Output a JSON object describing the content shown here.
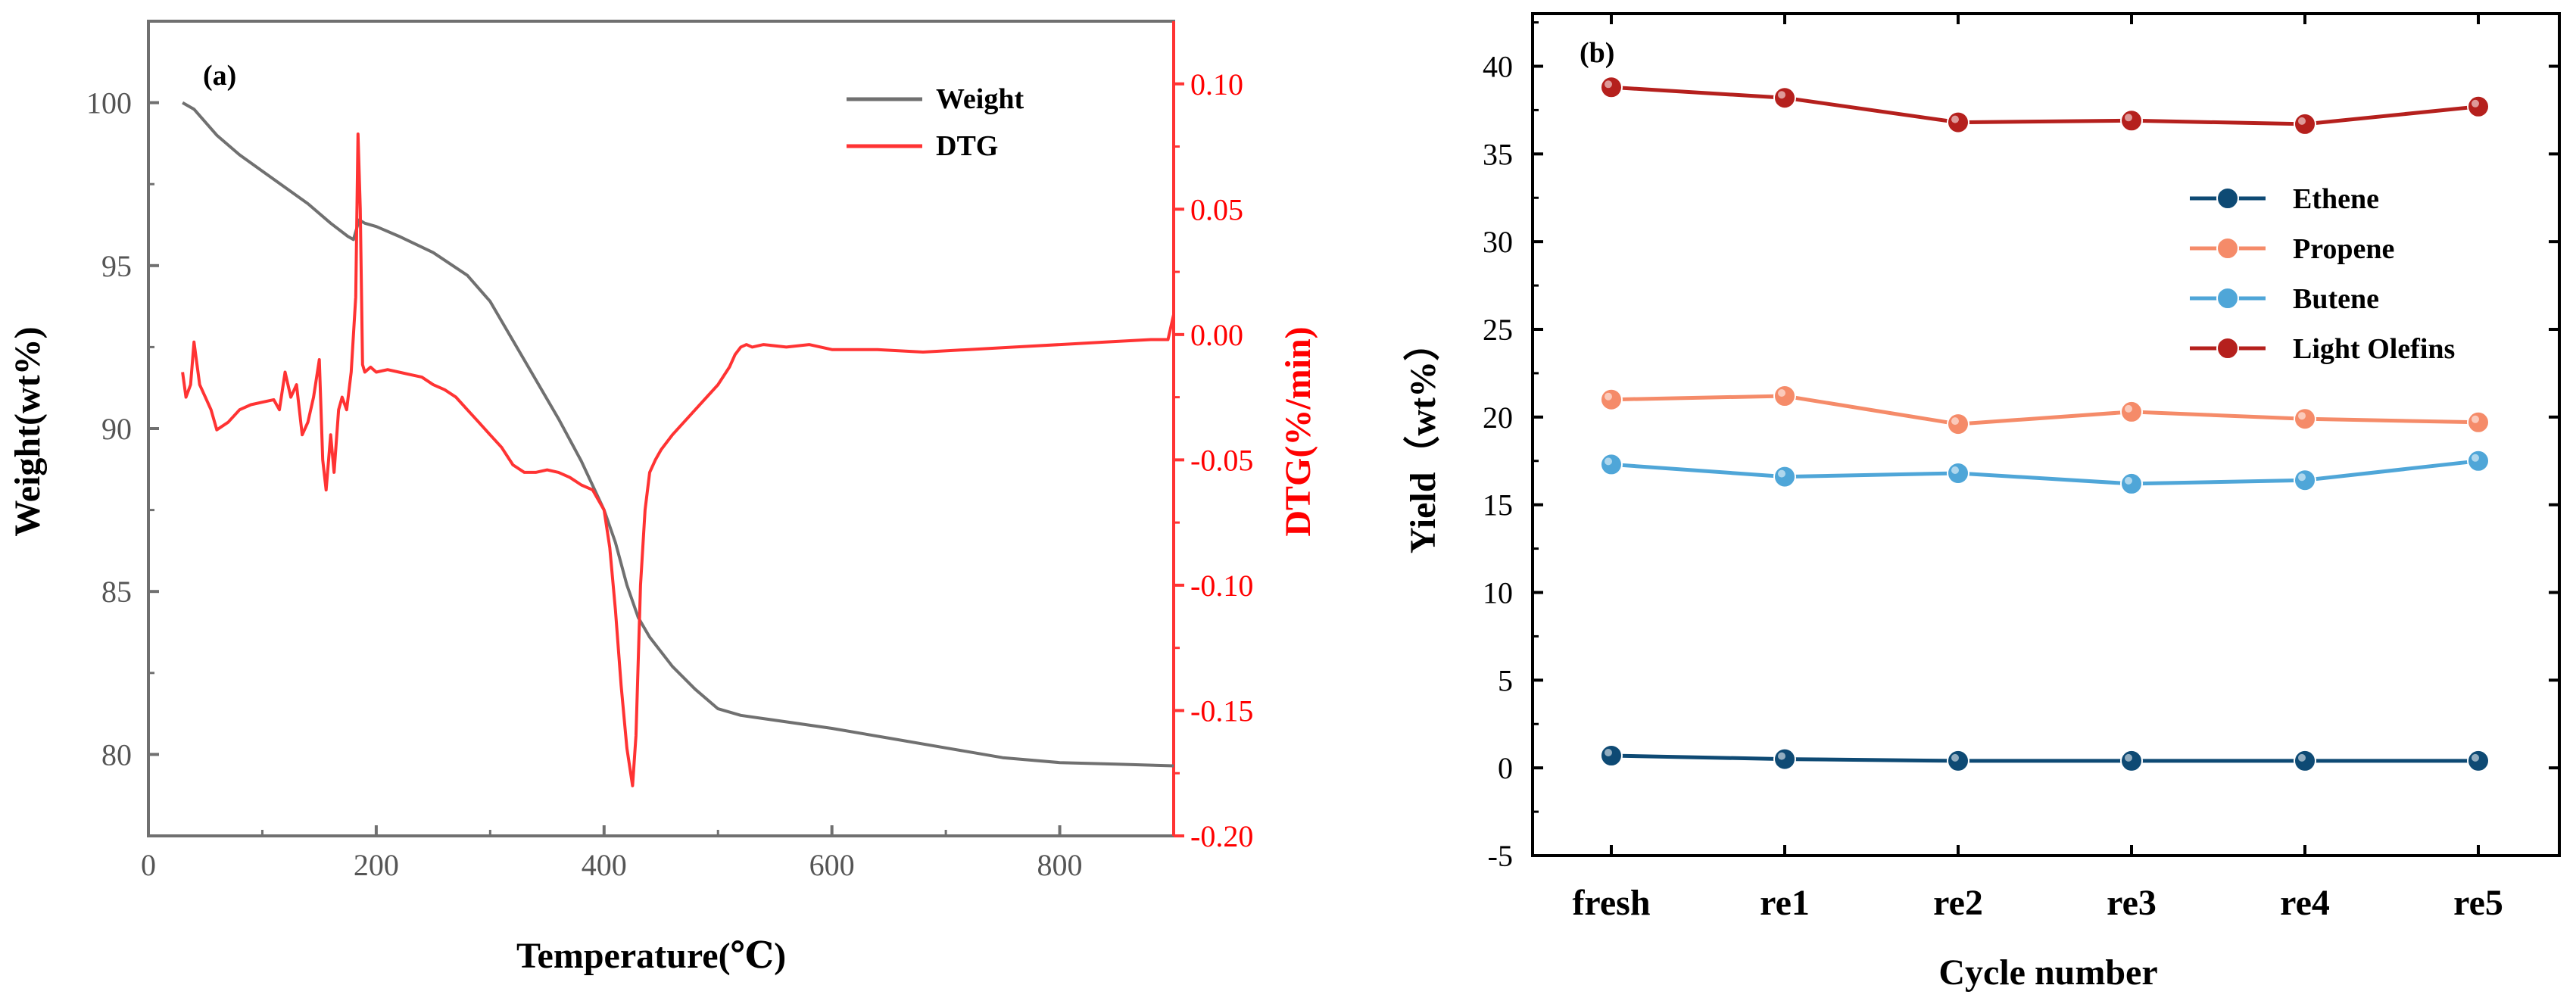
{
  "chart_data": [
    {
      "panel": "(a)",
      "type": "line",
      "xlabel": "Temperature(℃)",
      "ylabel_left": "Weight(wt%)",
      "ylabel_right": "DTG(%/min)",
      "xlim": [
        0,
        900
      ],
      "ylim_left": [
        77.5,
        102.5
      ],
      "ylim_right": [
        -0.2,
        0.125
      ],
      "x_ticks": [
        0,
        200,
        400,
        600,
        800
      ],
      "y_left_ticks": [
        80,
        85,
        90,
        95,
        100
      ],
      "y_right_ticks": [
        "-0.20",
        "-0.15",
        "-0.10",
        "-0.05",
        "0.00",
        "0.05",
        "0.10"
      ],
      "y_right_tick_values": [
        -0.2,
        -0.15,
        -0.1,
        -0.05,
        0.0,
        0.05,
        0.1
      ],
      "legend": [
        {
          "name": "Weight",
          "color": "#707070"
        },
        {
          "name": "DTG",
          "color": "#ff3333"
        }
      ],
      "series": [
        {
          "name": "Weight",
          "axis": "left",
          "color": "#707070",
          "x": [
            30,
            40,
            60,
            80,
            100,
            120,
            140,
            160,
            175,
            180,
            185,
            190,
            200,
            220,
            250,
            280,
            300,
            320,
            340,
            360,
            380,
            400,
            410,
            420,
            430,
            440,
            460,
            480,
            500,
            520,
            540,
            600,
            650,
            700,
            750,
            800,
            850,
            900
          ],
          "y": [
            100.0,
            99.8,
            99.0,
            98.4,
            97.9,
            97.4,
            96.9,
            96.3,
            95.9,
            95.8,
            96.4,
            96.3,
            96.2,
            95.9,
            95.4,
            94.7,
            93.9,
            92.7,
            91.5,
            90.3,
            89.0,
            87.5,
            86.5,
            85.2,
            84.2,
            83.6,
            82.7,
            82.0,
            81.4,
            81.2,
            81.1,
            80.8,
            80.5,
            80.2,
            79.9,
            79.75,
            79.7,
            79.65
          ]
        },
        {
          "name": "DTG",
          "axis": "right",
          "color": "#ff3333",
          "x": [
            30,
            33,
            37,
            40,
            45,
            50,
            55,
            60,
            70,
            80,
            90,
            100,
            110,
            115,
            120,
            125,
            130,
            135,
            140,
            145,
            150,
            153,
            156,
            160,
            163,
            167,
            170,
            174,
            178,
            182,
            184,
            186,
            188,
            190,
            195,
            200,
            210,
            220,
            230,
            240,
            250,
            260,
            270,
            280,
            290,
            300,
            310,
            320,
            330,
            340,
            350,
            360,
            370,
            380,
            390,
            400,
            405,
            410,
            415,
            420,
            425,
            428,
            432,
            436,
            440,
            445,
            450,
            460,
            470,
            480,
            490,
            500,
            510,
            515,
            520,
            525,
            530,
            540,
            560,
            580,
            600,
            640,
            680,
            720,
            760,
            800,
            840,
            880,
            895,
            900
          ],
          "y": [
            -0.015,
            -0.025,
            -0.02,
            -0.003,
            -0.02,
            -0.025,
            -0.03,
            -0.038,
            -0.035,
            -0.03,
            -0.028,
            -0.027,
            -0.026,
            -0.03,
            -0.015,
            -0.025,
            -0.02,
            -0.04,
            -0.035,
            -0.025,
            -0.01,
            -0.05,
            -0.062,
            -0.04,
            -0.055,
            -0.03,
            -0.025,
            -0.03,
            -0.015,
            0.015,
            0.08,
            0.05,
            -0.012,
            -0.015,
            -0.013,
            -0.015,
            -0.014,
            -0.015,
            -0.016,
            -0.017,
            -0.02,
            -0.022,
            -0.025,
            -0.03,
            -0.035,
            -0.04,
            -0.045,
            -0.052,
            -0.055,
            -0.055,
            -0.054,
            -0.055,
            -0.057,
            -0.06,
            -0.062,
            -0.07,
            -0.085,
            -0.11,
            -0.14,
            -0.165,
            -0.18,
            -0.16,
            -0.1,
            -0.07,
            -0.055,
            -0.05,
            -0.046,
            -0.04,
            -0.035,
            -0.03,
            -0.025,
            -0.02,
            -0.013,
            -0.008,
            -0.005,
            -0.004,
            -0.005,
            -0.004,
            -0.005,
            -0.004,
            -0.006,
            -0.006,
            -0.007,
            -0.006,
            -0.005,
            -0.004,
            -0.003,
            -0.002,
            -0.002,
            0.008
          ]
        }
      ]
    },
    {
      "panel": "(b)",
      "type": "line",
      "xlabel": "Cycle number",
      "ylabel": "Yield（wt%）",
      "ylim": [
        -5,
        43
      ],
      "y_ticks": [
        -5,
        0,
        5,
        10,
        15,
        20,
        25,
        30,
        35,
        40
      ],
      "categories": [
        "fresh",
        "re1",
        "re2",
        "re3",
        "re4",
        "re5"
      ],
      "series": [
        {
          "name": "Ethene",
          "color": "#0e4a74",
          "values": [
            0.7,
            0.5,
            0.4,
            0.4,
            0.4,
            0.4
          ]
        },
        {
          "name": "Propene",
          "color": "#f58b69",
          "values": [
            21.0,
            21.2,
            19.6,
            20.3,
            19.9,
            19.7
          ]
        },
        {
          "name": "Butene",
          "color": "#4fa6d8",
          "values": [
            17.3,
            16.6,
            16.8,
            16.2,
            16.4,
            17.5
          ]
        },
        {
          "name": "Light Olefins",
          "color": "#b5201d",
          "values": [
            38.8,
            38.2,
            36.8,
            36.9,
            36.7,
            37.7
          ]
        }
      ]
    }
  ]
}
